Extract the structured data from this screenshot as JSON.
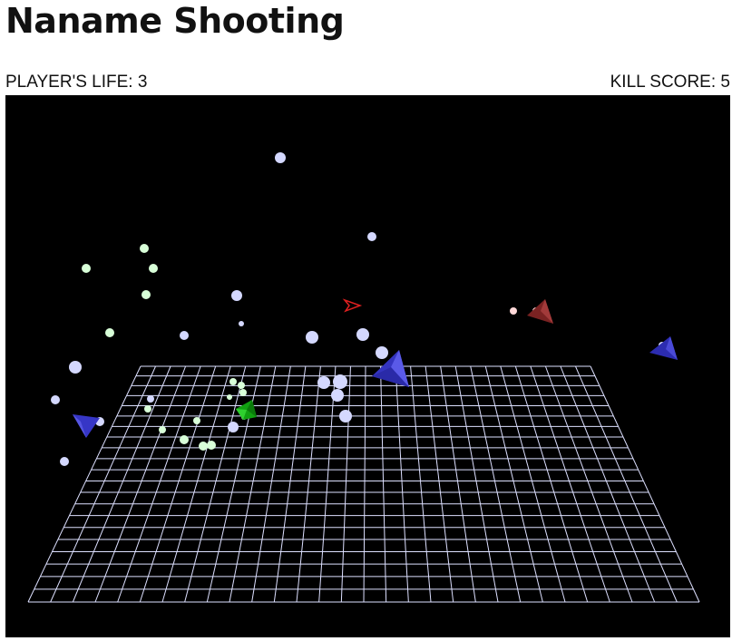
{
  "title": "Naname Shooting",
  "hud": {
    "life_label": "PLAYER'S LIFE: ",
    "life_value": "3",
    "score_label": "KILL SCORE: ",
    "score_value": "5"
  },
  "colors": {
    "background": "#000000",
    "grid": "#dde0ff",
    "player": "#1fae1f",
    "enemy_blue": "#3a3ad0",
    "enemy_red": "#8c2a2a",
    "enemy_bullet": "#d4d8ff",
    "player_bullet": "#d8ffd8"
  },
  "icons": {
    "player_ship": "green-pyramid-icon",
    "enemy_blue": "blue-pyramid-icon",
    "enemy_red": "red-pyramid-icon",
    "target_marker": "red-arrow-marker-icon"
  }
}
